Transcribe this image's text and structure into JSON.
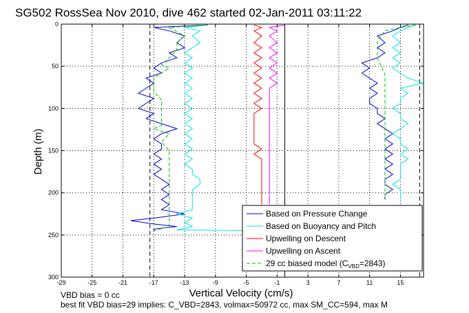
{
  "chart_data": {
    "type": "line",
    "title": "SG502 RossSea Nov 2010, dive 462 started 02-Jan-2011 03:11:22",
    "xlabel": "Vertical Velocity (cm/s)",
    "ylabel": "Depth (m)",
    "xlim": [
      -29,
      18
    ],
    "ylim": [
      0,
      300
    ],
    "y_reversed": true,
    "grid": "dotted",
    "legend_position": "lower-right",
    "x_ticks": [
      "-29",
      "-25",
      "-21",
      "-17",
      "-13",
      "-9",
      "-5",
      "-1",
      "3",
      "7",
      "11",
      "15"
    ],
    "y_ticks": [
      "0",
      "50",
      "100",
      "150",
      "200",
      "250",
      "300"
    ],
    "reference_lines": [
      {
        "x": -17.5,
        "style": "dashed"
      },
      {
        "x": 0,
        "style": "solid"
      },
      {
        "x": 17.5,
        "style": "dashed"
      }
    ],
    "series": [
      {
        "name": "Based on Pressure Change",
        "color": "#0000cc",
        "style": "solid",
        "group": "descent",
        "points": [
          [
            -10,
            1
          ],
          [
            -17,
            4
          ],
          [
            -15,
            8
          ],
          [
            -13,
            14
          ],
          [
            -14,
            22
          ],
          [
            -13,
            28
          ],
          [
            -15,
            34
          ],
          [
            -14,
            40
          ],
          [
            -16,
            46
          ],
          [
            -17,
            52
          ],
          [
            -16,
            58
          ],
          [
            -18,
            64
          ],
          [
            -17,
            70
          ],
          [
            -18,
            76
          ],
          [
            -19,
            82
          ],
          [
            -17,
            88
          ],
          [
            -18,
            94
          ],
          [
            -19,
            100
          ],
          [
            -17,
            106
          ],
          [
            -18,
            112
          ],
          [
            -16,
            118
          ],
          [
            -14,
            124
          ],
          [
            -16,
            130
          ],
          [
            -17,
            136
          ],
          [
            -16,
            142
          ],
          [
            -16,
            148
          ],
          [
            -17,
            154
          ],
          [
            -16,
            160
          ],
          [
            -17,
            166
          ],
          [
            -16,
            172
          ],
          [
            -17,
            178
          ],
          [
            -16,
            184
          ],
          [
            -15,
            190
          ],
          [
            -16,
            196
          ],
          [
            -15,
            202
          ],
          [
            -16,
            208
          ],
          [
            -15,
            214
          ],
          [
            -16,
            220
          ],
          [
            -13,
            225
          ],
          [
            -17,
            230
          ],
          [
            -20,
            233
          ],
          [
            -17,
            237
          ],
          [
            -14,
            240
          ],
          [
            -17,
            243
          ],
          [
            -17,
            245
          ]
        ]
      },
      {
        "name": "",
        "color": "#0000cc",
        "style": "solid",
        "group": "ascent",
        "points": [
          [
            16,
            1
          ],
          [
            15,
            4
          ],
          [
            14,
            8
          ],
          [
            12,
            14
          ],
          [
            13,
            22
          ],
          [
            12,
            28
          ],
          [
            13,
            34
          ],
          [
            12,
            40
          ],
          [
            10,
            46
          ],
          [
            11,
            52
          ],
          [
            10,
            58
          ],
          [
            11,
            64
          ],
          [
            12,
            70
          ],
          [
            11,
            76
          ],
          [
            12,
            82
          ],
          [
            11,
            88
          ],
          [
            11,
            94
          ],
          [
            12,
            100
          ],
          [
            12,
            106
          ],
          [
            13,
            112
          ],
          [
            12,
            118
          ],
          [
            13,
            124
          ],
          [
            14,
            130
          ],
          [
            13,
            136
          ],
          [
            14,
            142
          ],
          [
            13,
            148
          ],
          [
            14,
            154
          ],
          [
            13,
            160
          ],
          [
            14,
            166
          ],
          [
            13,
            172
          ],
          [
            14,
            178
          ],
          [
            13,
            184
          ],
          [
            13,
            190
          ],
          [
            14,
            196
          ],
          [
            13,
            202
          ],
          [
            13,
            208
          ]
        ]
      },
      {
        "name": "Based on Buoyancy and Pitch",
        "color": "#00e5e5",
        "style": "solid",
        "group": "descent",
        "points": [
          [
            -10,
            1
          ],
          [
            -13,
            4
          ],
          [
            -11,
            8
          ],
          [
            -12,
            14
          ],
          [
            -11,
            22
          ],
          [
            -12,
            28
          ],
          [
            -13,
            34
          ],
          [
            -12,
            40
          ],
          [
            -13,
            46
          ],
          [
            -12,
            52
          ],
          [
            -13,
            58
          ],
          [
            -12,
            64
          ],
          [
            -13,
            70
          ],
          [
            -12,
            76
          ],
          [
            -13,
            82
          ],
          [
            -12,
            88
          ],
          [
            -13,
            94
          ],
          [
            -12,
            100
          ],
          [
            -13,
            106
          ],
          [
            -12,
            112
          ],
          [
            -13,
            118
          ],
          [
            -12,
            124
          ],
          [
            -13,
            130
          ],
          [
            -12,
            136
          ],
          [
            -13,
            142
          ],
          [
            -12,
            148
          ],
          [
            -13,
            154
          ],
          [
            -12,
            160
          ],
          [
            -13,
            166
          ],
          [
            -12,
            172
          ],
          [
            -12,
            178
          ],
          [
            -11,
            184
          ],
          [
            -11,
            190
          ],
          [
            -12,
            196
          ],
          [
            -12,
            202
          ],
          [
            -12,
            208
          ],
          [
            -12,
            214
          ],
          [
            -12,
            220
          ],
          [
            -14,
            225
          ],
          [
            -12,
            230
          ],
          [
            -13,
            235
          ],
          [
            -12,
            240
          ],
          [
            -14,
            244
          ],
          [
            -3,
            245
          ]
        ]
      },
      {
        "name": "",
        "color": "#00e5e5",
        "style": "solid",
        "group": "ascent",
        "points": [
          [
            17,
            1
          ],
          [
            16,
            4
          ],
          [
            15,
            8
          ],
          [
            14,
            14
          ],
          [
            15,
            22
          ],
          [
            14,
            28
          ],
          [
            15,
            34
          ],
          [
            14,
            40
          ],
          [
            15,
            46
          ],
          [
            14,
            52
          ],
          [
            15,
            58
          ],
          [
            16,
            64
          ],
          [
            18,
            70
          ],
          [
            15,
            76
          ],
          [
            16,
            82
          ],
          [
            15,
            88
          ],
          [
            15,
            94
          ],
          [
            14,
            100
          ],
          [
            15,
            106
          ],
          [
            15,
            112
          ],
          [
            16,
            118
          ],
          [
            15,
            124
          ],
          [
            14,
            130
          ],
          [
            15,
            136
          ],
          [
            15,
            142
          ],
          [
            16,
            148
          ],
          [
            15,
            154
          ],
          [
            16,
            160
          ],
          [
            15,
            166
          ],
          [
            15,
            172
          ],
          [
            15,
            178
          ],
          [
            15,
            184
          ],
          [
            14,
            190
          ],
          [
            15,
            196
          ],
          [
            15,
            202
          ],
          [
            15,
            208
          ]
        ]
      },
      {
        "name": "Upwelling on Descent",
        "color": "#ff0000",
        "style": "solid",
        "points": [
          [
            -4,
            1
          ],
          [
            -3,
            4
          ],
          [
            -4,
            8
          ],
          [
            -3,
            14
          ],
          [
            -4,
            22
          ],
          [
            -3,
            28
          ],
          [
            -4,
            34
          ],
          [
            -3,
            40
          ],
          [
            -4,
            46
          ],
          [
            -3,
            52
          ],
          [
            -4,
            58
          ],
          [
            -3,
            64
          ],
          [
            -4,
            70
          ],
          [
            -3,
            76
          ],
          [
            -4,
            82
          ],
          [
            -3,
            88
          ],
          [
            -4,
            94
          ],
          [
            -3,
            100
          ],
          [
            -4,
            106
          ],
          [
            -4,
            112
          ],
          [
            -4,
            118
          ],
          [
            -4,
            124
          ],
          [
            -4,
            130
          ],
          [
            -4,
            136
          ],
          [
            -4,
            142
          ],
          [
            -3,
            148
          ],
          [
            -4,
            154
          ],
          [
            -3,
            160
          ],
          [
            -3,
            166
          ],
          [
            -3,
            172
          ],
          [
            -3,
            178
          ],
          [
            -3,
            184
          ],
          [
            -3,
            190
          ],
          [
            -3,
            196
          ],
          [
            -3,
            202
          ],
          [
            -3,
            208
          ],
          [
            -3,
            214
          ]
        ]
      },
      {
        "name": "Upwelling on Ascent",
        "color": "#ff00ff",
        "style": "solid",
        "points": [
          [
            0,
            1
          ],
          [
            -2,
            4
          ],
          [
            -1,
            8
          ],
          [
            -2,
            14
          ],
          [
            -1,
            22
          ],
          [
            -2,
            28
          ],
          [
            -1,
            34
          ],
          [
            -2,
            40
          ],
          [
            -1,
            46
          ],
          [
            -2,
            52
          ],
          [
            -1,
            58
          ],
          [
            -2,
            64
          ],
          [
            -1,
            70
          ],
          [
            -2,
            76
          ],
          [
            -2,
            82
          ],
          [
            -2,
            88
          ],
          [
            -2,
            94
          ],
          [
            -2,
            100
          ],
          [
            -2,
            106
          ],
          [
            -2,
            112
          ],
          [
            -2,
            118
          ],
          [
            -2,
            124
          ],
          [
            -2,
            130
          ],
          [
            -2,
            136
          ],
          [
            -2,
            142
          ],
          [
            -2,
            148
          ],
          [
            -2,
            154
          ],
          [
            -2,
            160
          ],
          [
            -2,
            166
          ],
          [
            -2,
            172
          ],
          [
            -2,
            178
          ],
          [
            -2,
            184
          ],
          [
            -2,
            190
          ],
          [
            -2,
            196
          ],
          [
            -2,
            202
          ],
          [
            -2,
            208
          ],
          [
            -2,
            214
          ]
        ]
      },
      {
        "name": "29 cc biased model (C_VBD=2843)",
        "color": "#00c000",
        "style": "dashed",
        "group": "descent",
        "points": [
          [
            -10,
            1
          ],
          [
            -15,
            4
          ],
          [
            -13,
            14
          ],
          [
            -14,
            22
          ],
          [
            -14,
            30
          ],
          [
            -15,
            40
          ],
          [
            -16,
            48
          ],
          [
            -15,
            52
          ],
          [
            -16,
            58
          ],
          [
            -17,
            64
          ],
          [
            -17,
            72
          ],
          [
            -17,
            80
          ],
          [
            -16,
            90
          ],
          [
            -16,
            100
          ],
          [
            -16,
            112
          ],
          [
            -16,
            120
          ],
          [
            -17,
            124
          ],
          [
            -15,
            130
          ],
          [
            -16,
            140
          ],
          [
            -15,
            150
          ],
          [
            -15,
            165
          ],
          [
            -15,
            180
          ],
          [
            -15,
            195
          ],
          [
            -15,
            210
          ],
          [
            -15,
            225
          ],
          [
            -15,
            240
          ],
          [
            -17,
            245
          ]
        ]
      },
      {
        "name": "",
        "color": "#00c000",
        "style": "dashed",
        "group": "ascent",
        "points": [
          [
            17,
            1
          ],
          [
            15,
            4
          ],
          [
            13,
            8
          ],
          [
            12,
            20
          ],
          [
            12,
            40
          ],
          [
            13,
            60
          ],
          [
            13,
            80
          ],
          [
            13,
            100
          ],
          [
            13,
            120
          ],
          [
            13,
            140
          ],
          [
            13,
            160
          ],
          [
            13,
            180
          ],
          [
            13,
            200
          ],
          [
            13,
            208
          ]
        ]
      }
    ],
    "legend": [
      {
        "label": "Based on Pressure Change",
        "color": "#0000cc",
        "style": "solid"
      },
      {
        "label": "Based on Buoyancy and Pitch",
        "color": "#00e5e5",
        "style": "solid"
      },
      {
        "label": "Upwelling on Descent",
        "color": "#ff0000",
        "style": "solid"
      },
      {
        "label": "Upwelling on Ascent",
        "color": "#ff00ff",
        "style": "solid"
      },
      {
        "label_main": "29 cc biased model (C",
        "label_sub": "VBD",
        "label_end": "=2843)",
        "color": "#00c000",
        "style": "dashed"
      }
    ],
    "annotations": [
      "VBD bias = 0 cc",
      "best fit VBD bias=29 implies: C_VBD=2843, volmax=50972 cc, max SM_CC=594, max M"
    ]
  }
}
